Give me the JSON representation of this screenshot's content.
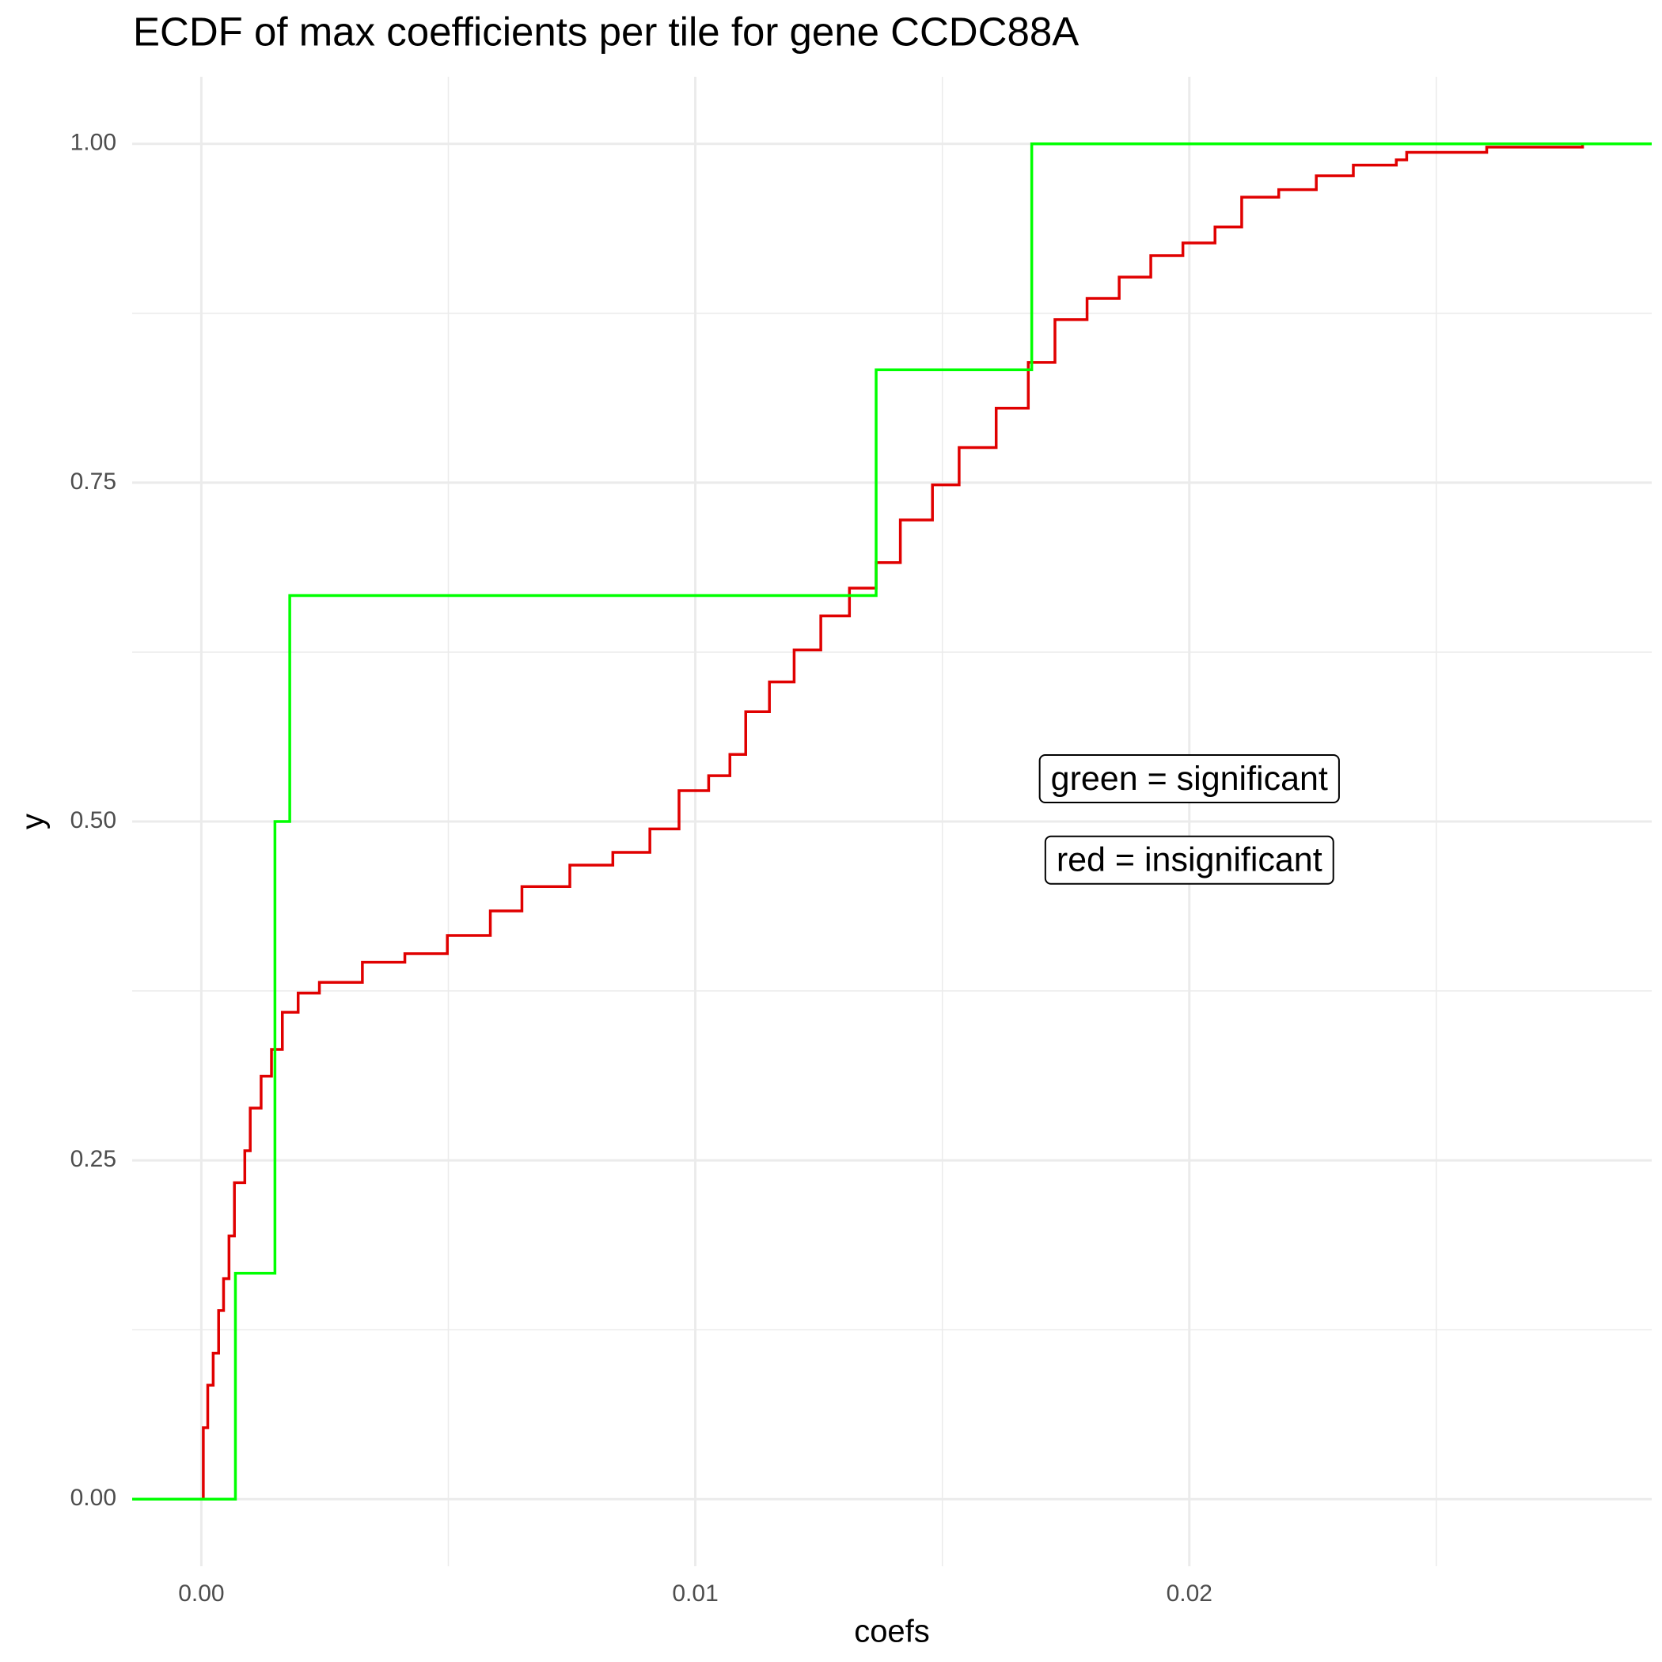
{
  "chart_data": {
    "type": "step",
    "title": "ECDF of max coefficients per tile for gene CCDC88A",
    "x_label": "coefs",
    "y_label": "y",
    "xlim": [
      -0.0014,
      0.02936
    ],
    "ylim": [
      -0.0495,
      1.0495
    ],
    "xticks": [
      {
        "value": 0,
        "label": "0.00"
      },
      {
        "value": 0.01,
        "label": "0.01"
      },
      {
        "value": 0.02,
        "label": "0.02"
      }
    ],
    "yticks": [
      {
        "value": 0,
        "label": "0.00"
      },
      {
        "value": 0.25,
        "label": "0.25"
      },
      {
        "value": 0.5,
        "label": "0.50"
      },
      {
        "value": 0.75,
        "label": "0.75"
      },
      {
        "value": 1,
        "label": "1.00"
      }
    ],
    "xminorticks": [
      0.005,
      0.015,
      0.025
    ],
    "yminorticks": [
      0.125,
      0.375,
      0.625,
      0.875
    ],
    "grid": true,
    "series": [
      {
        "color": "#e00000",
        "x": [
          -0.0014,
          4e-05,
          0.00013,
          0.00024,
          0.00035,
          0.00045,
          0.00056,
          0.00067,
          0.00088,
          0.00099,
          0.00121,
          0.00142,
          0.00164,
          0.00196,
          0.00239,
          0.00326,
          0.00412,
          0.00498,
          0.00585,
          0.00649,
          0.00746,
          0.00833,
          0.00908,
          0.00967,
          0.01027,
          0.0107,
          0.01102,
          0.0115,
          0.012,
          0.01254,
          0.01312,
          0.01366,
          0.01415,
          0.0148,
          0.01534,
          0.01609,
          0.01674,
          0.01728,
          0.01793,
          0.01858,
          0.01922,
          0.01987,
          0.02052,
          0.02106,
          0.02181,
          0.02257,
          0.02332,
          0.02419,
          0.0244,
          0.02602,
          0.02796
        ],
        "values": [
          0,
          0.0527,
          0.0841,
          0.1077,
          0.1392,
          0.1627,
          0.1942,
          0.2335,
          0.2571,
          0.2885,
          0.3121,
          0.3318,
          0.3593,
          0.3734,
          0.3813,
          0.3962,
          0.4025,
          0.4159,
          0.434,
          0.452,
          0.4678,
          0.4772,
          0.4945,
          0.5228,
          0.5338,
          0.5495,
          0.581,
          0.603,
          0.6266,
          0.6517,
          0.6722,
          0.691,
          0.7225,
          0.7484,
          0.7759,
          0.805,
          0.8388,
          0.8703,
          0.886,
          0.9017,
          0.9175,
          0.9269,
          0.9387,
          0.9607,
          0.9662,
          0.9764,
          0.9843,
          0.9882,
          0.9937,
          0.9976,
          1
        ]
      },
      {
        "color": "#00ff00",
        "x": [
          -0.0014,
          0.00069,
          0.00149,
          0.00179,
          0.01366,
          0.01681
        ],
        "values": [
          0,
          0.1667,
          0.5,
          0.6667,
          0.8333,
          1
        ]
      }
    ],
    "annotations": [
      {
        "text": "green = significant",
        "x": 0.02,
        "y": 0.53
      },
      {
        "text": "red = insignificant",
        "x": 0.02,
        "y": 0.47
      }
    ]
  }
}
